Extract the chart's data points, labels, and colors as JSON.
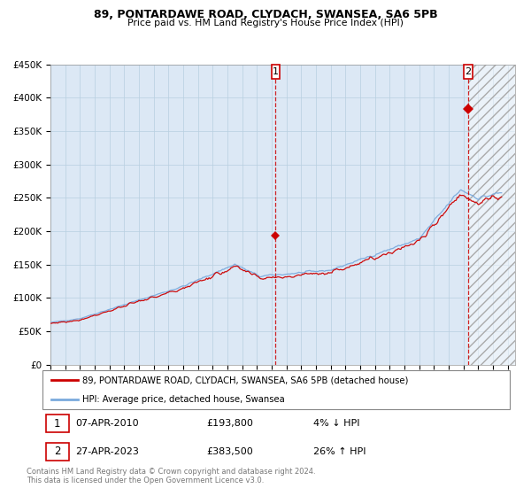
{
  "title1": "89, PONTARDAWE ROAD, CLYDACH, SWANSEA, SA6 5PB",
  "title2": "Price paid vs. HM Land Registry's House Price Index (HPI)",
  "legend_line1": "89, PONTARDAWE ROAD, CLYDACH, SWANSEA, SA6 5PB (detached house)",
  "legend_line2": "HPI: Average price, detached house, Swansea",
  "sale1_date": "07-APR-2010",
  "sale1_price": "£193,800",
  "sale1_hpi": "4% ↓ HPI",
  "sale2_date": "27-APR-2023",
  "sale2_price": "£383,500",
  "sale2_hpi": "26% ↑ HPI",
  "footnote1": "Contains HM Land Registry data © Crown copyright and database right 2024.",
  "footnote2": "This data is licensed under the Open Government Licence v3.0.",
  "hpi_color": "#7aaadd",
  "price_color": "#cc0000",
  "plot_bg": "#dce8f5",
  "grid_color": "#b8cfe0",
  "hatch_color": "#bbbbbb",
  "sale1_x": 2010.27,
  "sale1_y": 193800,
  "sale2_x": 2023.32,
  "sale2_y": 383500,
  "xmin": 1995,
  "xmax": 2026.5,
  "ymin": 0,
  "ymax": 450000,
  "yticks": [
    0,
    50000,
    100000,
    150000,
    200000,
    250000,
    300000,
    350000,
    400000,
    450000
  ]
}
